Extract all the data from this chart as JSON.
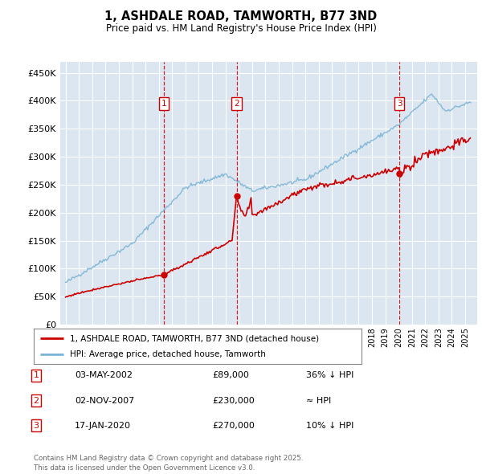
{
  "title": "1, ASHDALE ROAD, TAMWORTH, B77 3ND",
  "subtitle": "Price paid vs. HM Land Registry's House Price Index (HPI)",
  "legend_line1": "1, ASHDALE ROAD, TAMWORTH, B77 3ND (detached house)",
  "legend_line2": "HPI: Average price, detached house, Tamworth",
  "transactions": [
    {
      "num": 1,
      "date": "03-MAY-2002",
      "price": 89000,
      "note": "36% ↓ HPI",
      "year": 2002.37
    },
    {
      "num": 2,
      "date": "02-NOV-2007",
      "price": 230000,
      "note": "≈ HPI",
      "year": 2007.84
    },
    {
      "num": 3,
      "date": "17-JAN-2020",
      "price": 270000,
      "note": "10% ↓ HPI",
      "year": 2020.05
    }
  ],
  "footer": "Contains HM Land Registry data © Crown copyright and database right 2025.\nThis data is licensed under the Open Government Licence v3.0.",
  "background_color": "#ffffff",
  "plot_bg_color": "#dce6f1",
  "grid_color": "#ffffff",
  "hpi_line_color": "#7ab3d4",
  "price_line_color": "#cc0000",
  "vline_color": "#cc0000",
  "box_color": "#cc0000",
  "ylim": [
    0,
    470000
  ],
  "yticks": [
    0,
    50000,
    100000,
    150000,
    200000,
    250000,
    300000,
    350000,
    400000,
    450000
  ],
  "xlim_start": 1994.6,
  "xlim_end": 2025.9
}
